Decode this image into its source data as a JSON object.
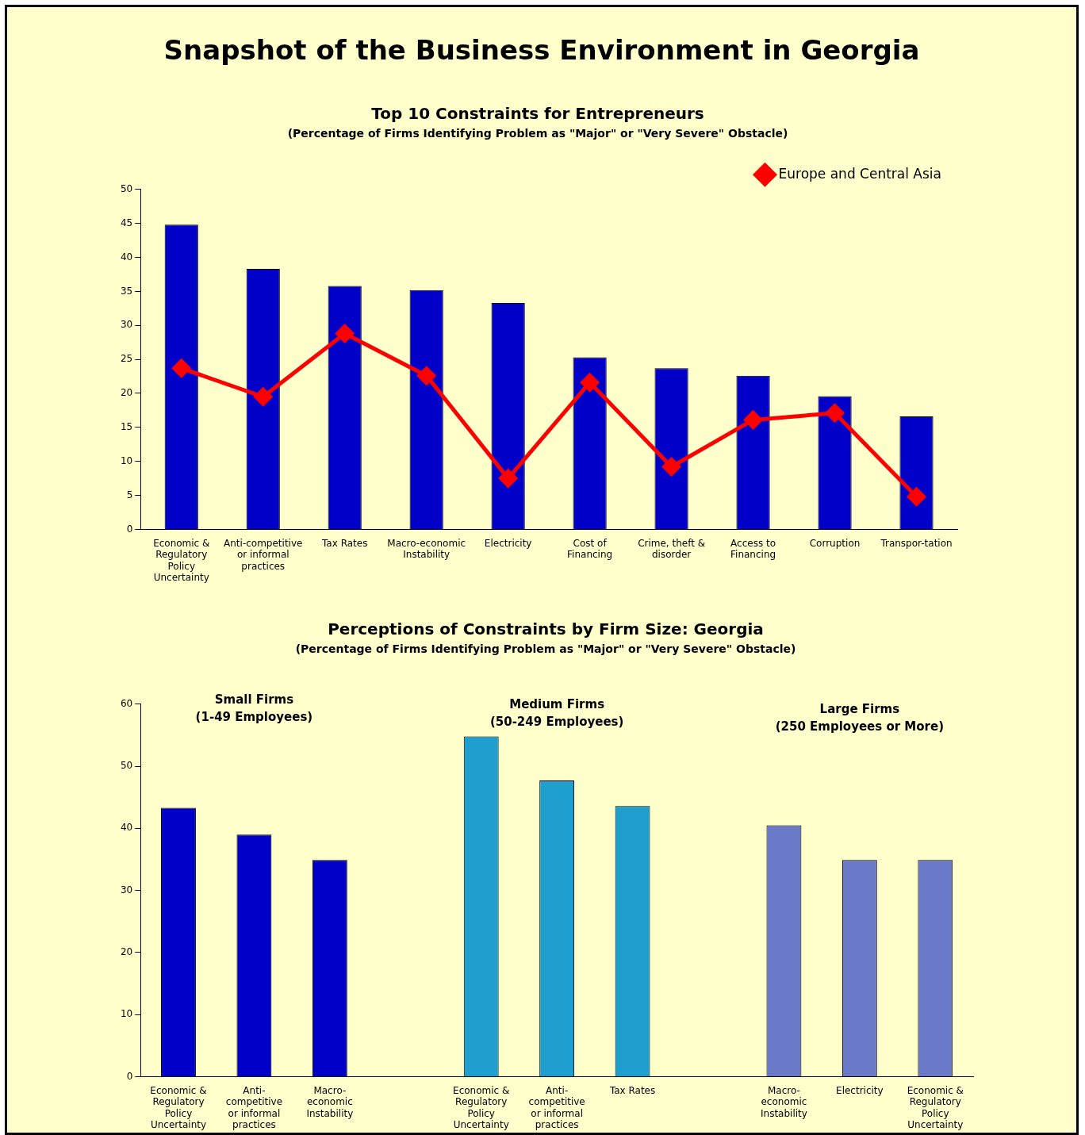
{
  "chart_data": [
    {
      "type": "bar",
      "title": "Top 10 Constraints for Entrepreneurs",
      "subtitle": "(Percentage of Firms Identifying Problem as \"Major\" or \"Very Severe\" Obstacle)",
      "categories": [
        "Economic & Regulatory Policy Uncertainty",
        "Anti-competitive or informal practices",
        "Tax Rates",
        "Macro-economic Instability",
        "Electricity",
        "Cost of Financing",
        "Crime, theft & disorder",
        "Access to Financing",
        "Corruption",
        "Transpor-tation"
      ],
      "series": [
        {
          "type": "bar",
          "color": "#0000c8",
          "values": [
            44.8,
            38.3,
            35.8,
            35.2,
            33.3,
            25.3,
            23.7,
            22.6,
            19.6,
            16.6
          ]
        },
        {
          "type": "line",
          "name": "Europe and Central Asia",
          "color": "#ff0000",
          "values": [
            23.7,
            19.5,
            28.8,
            22.6,
            7.5,
            21.6,
            9.2,
            16.1,
            17.1,
            4.8
          ]
        }
      ],
      "annotations": [
        "Snapshot of the Business Environment in Georgia"
      ],
      "ylim": [
        0,
        50
      ],
      "yticks": [
        0,
        5,
        10,
        15,
        20,
        25,
        30,
        35,
        40,
        45,
        50
      ],
      "grid": false,
      "legend": "top right",
      "marker": "diamond"
    },
    {
      "type": "bar",
      "title": "Perceptions of Constraints by Firm Size: Georgia",
      "subtitle": "(Percentage of Firms Identifying Problem as \"Major\" or \"Very Severe\" Obstacle)",
      "categories": [
        "Economic & Regulatory Policy Uncertainty",
        "Anti-competitive or informal practices",
        "Macro-economic Instability",
        null,
        "Economic & Regulatory Policy Uncertainty",
        "Anti-competitive or informal practices",
        "Tax Rates",
        null,
        "Macro-economic Instability",
        "Electricity",
        "Economic & Regulatory Policy Uncertainty"
      ],
      "series": [
        {
          "color": "#0000c8",
          "values": [
            43.3,
            39.0,
            34.9,
            null,
            null,
            null,
            null,
            null,
            null,
            null,
            null
          ]
        },
        {
          "color": "#1f9fd0",
          "values": [
            null,
            null,
            null,
            null,
            54.8,
            47.7,
            43.6,
            null,
            null,
            null,
            null
          ]
        },
        {
          "color": "#6a78c8",
          "values": [
            null,
            null,
            null,
            null,
            null,
            null,
            null,
            null,
            40.5,
            34.9,
            34.9
          ]
        }
      ],
      "annotations": [
        "Small Firms\n(1-49 Employees)",
        "Medium Firms\n(50-249 Employees)",
        "Large Firms\n(250 Employees or More)"
      ],
      "ylim": [
        0,
        60
      ],
      "yticks": [
        0,
        10,
        20,
        30,
        40,
        50,
        60
      ],
      "grid": false,
      "legend": false
    }
  ]
}
